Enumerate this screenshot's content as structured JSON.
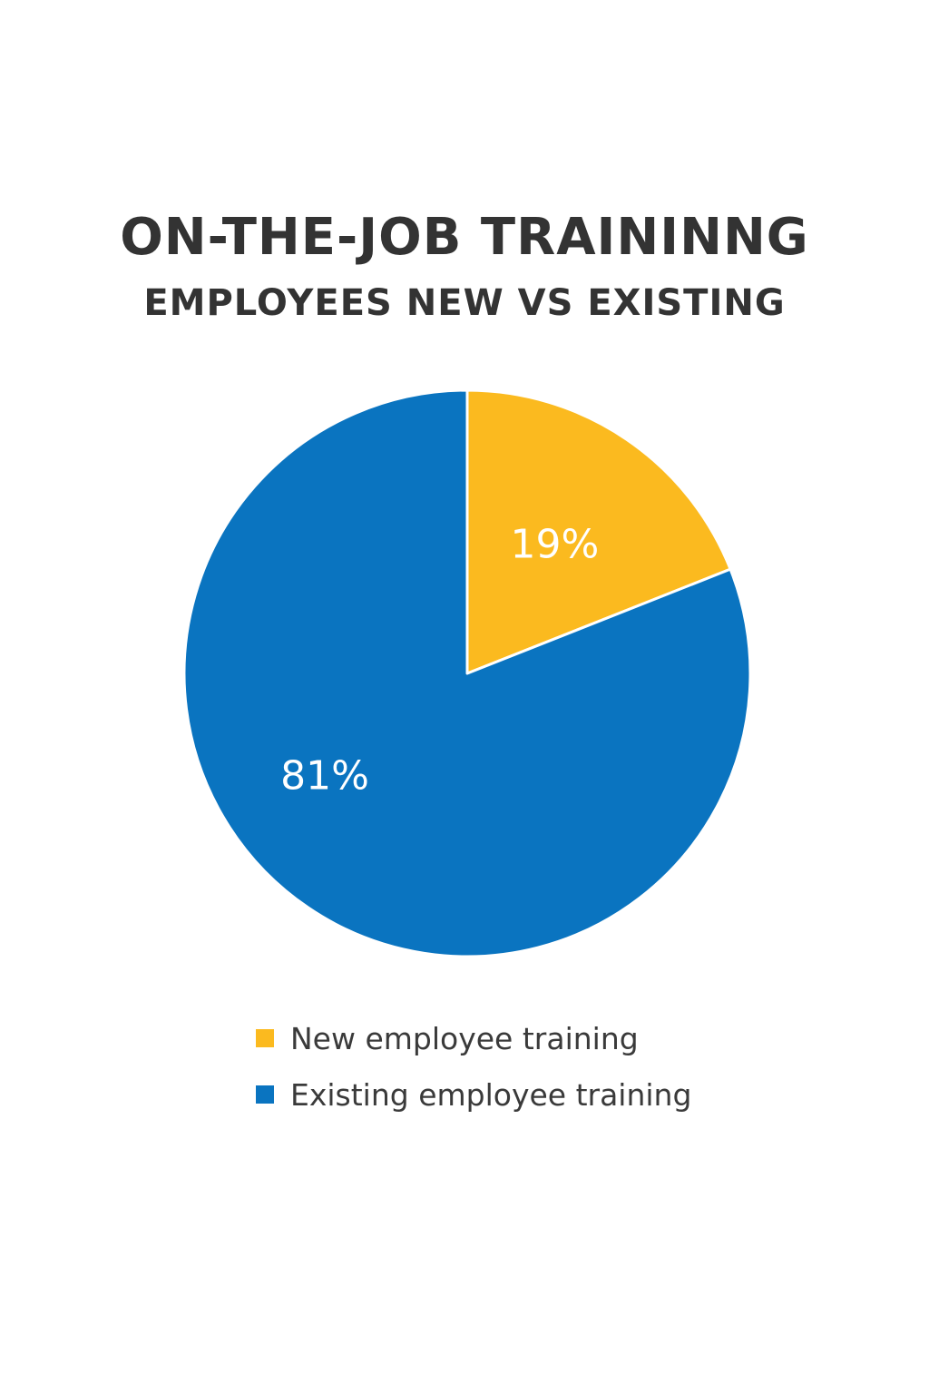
{
  "chart_data": {
    "type": "pie",
    "title": "ON-THE-JOB TRAININNG",
    "subtitle": "EMPLOYEES NEW VS EXISTING",
    "slices": [
      {
        "label": "New employee training",
        "value": 19,
        "display": "19%",
        "color": "#FBBA1F"
      },
      {
        "label": "Existing employee training",
        "value": 81,
        "display": "81%",
        "color": "#0A74C0"
      }
    ],
    "legend_position": "bottom",
    "start_angle": "12 o'clock, clockwise"
  }
}
